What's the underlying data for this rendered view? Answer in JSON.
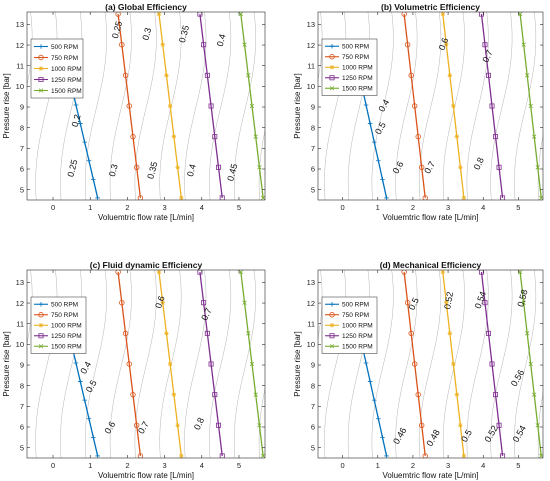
{
  "colors": {
    "500 RPM": "#0072BD",
    "750 RPM": "#D95319",
    "1000 RPM": "#EDB120",
    "1250 RPM": "#7E2F8E",
    "1500 RPM": "#77AC30",
    "contour": "#b4b4b4"
  },
  "chart_data": [
    {
      "type": "line",
      "title": "(a) Global Efficiency",
      "xlabel": "Voluemtric flow rate [L/min]",
      "ylabel": "Pressure rise [bar]",
      "xlim": [
        -0.7,
        5.7
      ],
      "ylim": [
        4.5,
        13.6
      ],
      "xticks": [
        0,
        1,
        2,
        3,
        4,
        5
      ],
      "yticks": [
        5,
        6,
        7,
        8,
        9,
        10,
        11,
        12,
        13
      ],
      "grid": false,
      "legend": "top-left",
      "series": [
        {
          "name": "500 RPM",
          "marker": "plus",
          "x": [
            1.2,
            0.5
          ],
          "y": [
            4.6,
            10.0
          ]
        },
        {
          "name": "750 RPM",
          "marker": "circle",
          "x": [
            2.35,
            1.75
          ],
          "y": [
            4.6,
            13.5
          ]
        },
        {
          "name": "1000 RPM",
          "marker": "star",
          "x": [
            3.45,
            2.85
          ],
          "y": [
            4.6,
            13.5
          ]
        },
        {
          "name": "1250 RPM",
          "marker": "square",
          "x": [
            4.55,
            3.95
          ],
          "y": [
            4.6,
            13.5
          ]
        },
        {
          "name": "1500 RPM",
          "marker": "x",
          "x": [
            5.65,
            5.05
          ],
          "y": [
            4.6,
            13.5
          ]
        }
      ],
      "contour_labels": [
        {
          "text": "0.25",
          "x": 0.6,
          "y": 6.0,
          "rotation": -75
        },
        {
          "text": "0.3",
          "x": 1.7,
          "y": 5.9,
          "rotation": -75
        },
        {
          "text": "0.35",
          "x": 2.75,
          "y": 5.9,
          "rotation": -75
        },
        {
          "text": "0.4",
          "x": 3.8,
          "y": 5.9,
          "rotation": -75
        },
        {
          "text": "0.45",
          "x": 4.9,
          "y": 5.8,
          "rotation": -75
        },
        {
          "text": "0.2",
          "x": 0.7,
          "y": 8.3,
          "rotation": -75
        },
        {
          "text": "0.15",
          "x": 0.45,
          "y": 9.8,
          "rotation": -75
        },
        {
          "text": "0.25",
          "x": 1.8,
          "y": 12.7,
          "rotation": -75
        },
        {
          "text": "0.3",
          "x": 2.6,
          "y": 12.5,
          "rotation": -75
        },
        {
          "text": "0.35",
          "x": 3.6,
          "y": 12.5,
          "rotation": -75
        },
        {
          "text": "0.4",
          "x": 4.6,
          "y": 12.2,
          "rotation": -75
        }
      ]
    },
    {
      "type": "line",
      "title": "(b) Volumetric Efficiency",
      "xlabel": "Voluemtric flow rate [L/min]",
      "ylabel": "Pressure rise [bar]",
      "xlim": [
        -0.7,
        5.7
      ],
      "ylim": [
        4.5,
        13.6
      ],
      "xticks": [
        0,
        1,
        2,
        3,
        4,
        5
      ],
      "yticks": [
        5,
        6,
        7,
        8,
        9,
        10,
        11,
        12,
        13
      ],
      "grid": false,
      "legend": "top-left",
      "series": [
        {
          "name": "500 RPM",
          "marker": "plus",
          "x": [
            1.25,
            0.55
          ],
          "y": [
            4.6,
            10.0
          ]
        },
        {
          "name": "750 RPM",
          "marker": "circle",
          "x": [
            2.35,
            1.75
          ],
          "y": [
            4.6,
            13.5
          ]
        },
        {
          "name": "1000 RPM",
          "marker": "star",
          "x": [
            3.45,
            2.85
          ],
          "y": [
            4.6,
            13.5
          ]
        },
        {
          "name": "1250 RPM",
          "marker": "square",
          "x": [
            4.55,
            3.95
          ],
          "y": [
            4.6,
            13.5
          ]
        },
        {
          "name": "1500 RPM",
          "marker": "x",
          "x": [
            5.65,
            5.05
          ],
          "y": [
            4.6,
            13.5
          ]
        }
      ],
      "contour_labels": [
        {
          "text": "0.3",
          "x": 0.75,
          "y": 9.8,
          "rotation": -60
        },
        {
          "text": "0.4",
          "x": 1.25,
          "y": 9.0,
          "rotation": -60
        },
        {
          "text": "0.5",
          "x": 1.15,
          "y": 7.9,
          "rotation": -60
        },
        {
          "text": "0.6",
          "x": 1.65,
          "y": 6.0,
          "rotation": -60
        },
        {
          "text": "0.7",
          "x": 2.55,
          "y": 6.0,
          "rotation": -60
        },
        {
          "text": "0.8",
          "x": 3.95,
          "y": 6.2,
          "rotation": -65
        },
        {
          "text": "0.6",
          "x": 2.95,
          "y": 12.0,
          "rotation": -70
        },
        {
          "text": "0.7",
          "x": 4.2,
          "y": 11.4,
          "rotation": -65
        }
      ]
    },
    {
      "type": "line",
      "title": "(c) Fluid dynamic Efficiency",
      "xlabel": "Voluemtric flow rate [L/min]",
      "ylabel": "Pressure rise [bar]",
      "xlim": [
        -0.7,
        5.7
      ],
      "ylim": [
        4.5,
        13.6
      ],
      "xticks": [
        0,
        1,
        2,
        3,
        4,
        5
      ],
      "yticks": [
        5,
        6,
        7,
        8,
        9,
        10,
        11,
        12,
        13
      ],
      "grid": false,
      "legend": "top-left",
      "series": [
        {
          "name": "500 RPM",
          "marker": "plus",
          "x": [
            1.2,
            0.5
          ],
          "y": [
            4.6,
            10.0
          ]
        },
        {
          "name": "750 RPM",
          "marker": "circle",
          "x": [
            2.35,
            1.75
          ],
          "y": [
            4.6,
            13.5
          ]
        },
        {
          "name": "1000 RPM",
          "marker": "star",
          "x": [
            3.45,
            2.85
          ],
          "y": [
            4.6,
            13.5
          ]
        },
        {
          "name": "1250 RPM",
          "marker": "square",
          "x": [
            4.55,
            3.95
          ],
          "y": [
            4.6,
            13.5
          ]
        },
        {
          "name": "1500 RPM",
          "marker": "x",
          "x": [
            5.65,
            5.05
          ],
          "y": [
            4.6,
            13.5
          ]
        }
      ],
      "contour_labels": [
        {
          "text": "0.3",
          "x": 0.7,
          "y": 9.9,
          "rotation": -60
        },
        {
          "text": "0.4",
          "x": 0.95,
          "y": 8.8,
          "rotation": -60
        },
        {
          "text": "0.5",
          "x": 1.1,
          "y": 7.9,
          "rotation": -60
        },
        {
          "text": "0.6",
          "x": 1.6,
          "y": 5.9,
          "rotation": -60
        },
        {
          "text": "0.7",
          "x": 2.5,
          "y": 5.9,
          "rotation": -60
        },
        {
          "text": "0.8",
          "x": 4.0,
          "y": 6.1,
          "rotation": -65
        },
        {
          "text": "0.6",
          "x": 2.95,
          "y": 12.0,
          "rotation": -70
        },
        {
          "text": "0.7",
          "x": 4.2,
          "y": 11.4,
          "rotation": -65
        }
      ]
    },
    {
      "type": "line",
      "title": "(d) Mechanical Efficiency",
      "xlabel": "Voluemtric flow rate [L/min]",
      "ylabel": "Pressure rise [bar]",
      "xlim": [
        -0.7,
        5.7
      ],
      "ylim": [
        4.5,
        13.6
      ],
      "xticks": [
        0,
        1,
        2,
        3,
        4,
        5
      ],
      "yticks": [
        5,
        6,
        7,
        8,
        9,
        10,
        11,
        12,
        13
      ],
      "grid": false,
      "legend": "top-left",
      "series": [
        {
          "name": "500 RPM",
          "marker": "plus",
          "x": [
            1.25,
            0.55
          ],
          "y": [
            4.6,
            10.0
          ]
        },
        {
          "name": "750 RPM",
          "marker": "circle",
          "x": [
            2.35,
            1.75
          ],
          "y": [
            4.6,
            13.5
          ]
        },
        {
          "name": "1000 RPM",
          "marker": "star",
          "x": [
            3.45,
            2.85
          ],
          "y": [
            4.6,
            13.5
          ]
        },
        {
          "name": "1250 RPM",
          "marker": "square",
          "x": [
            4.55,
            3.95
          ],
          "y": [
            4.6,
            13.5
          ]
        },
        {
          "name": "1500 RPM",
          "marker": "x",
          "x": [
            5.65,
            5.05
          ],
          "y": [
            4.6,
            13.5
          ]
        }
      ],
      "contour_labels": [
        {
          "text": "0.46",
          "x": 1.7,
          "y": 5.5,
          "rotation": -60
        },
        {
          "text": "0.48",
          "x": 2.65,
          "y": 5.4,
          "rotation": -60
        },
        {
          "text": "0.5",
          "x": 3.6,
          "y": 5.5,
          "rotation": -60
        },
        {
          "text": "0.52",
          "x": 4.3,
          "y": 5.6,
          "rotation": -60
        },
        {
          "text": "0.54",
          "x": 5.1,
          "y": 5.6,
          "rotation": -60
        },
        {
          "text": "0.56",
          "x": 5.05,
          "y": 8.3,
          "rotation": -60
        },
        {
          "text": "0.5",
          "x": 2.1,
          "y": 11.9,
          "rotation": -65
        },
        {
          "text": "0.52",
          "x": 3.1,
          "y": 12.1,
          "rotation": -80
        },
        {
          "text": "0.54",
          "x": 4.0,
          "y": 12.1,
          "rotation": -70
        },
        {
          "text": "0.58",
          "x": 5.2,
          "y": 12.2,
          "rotation": -75
        }
      ]
    }
  ]
}
